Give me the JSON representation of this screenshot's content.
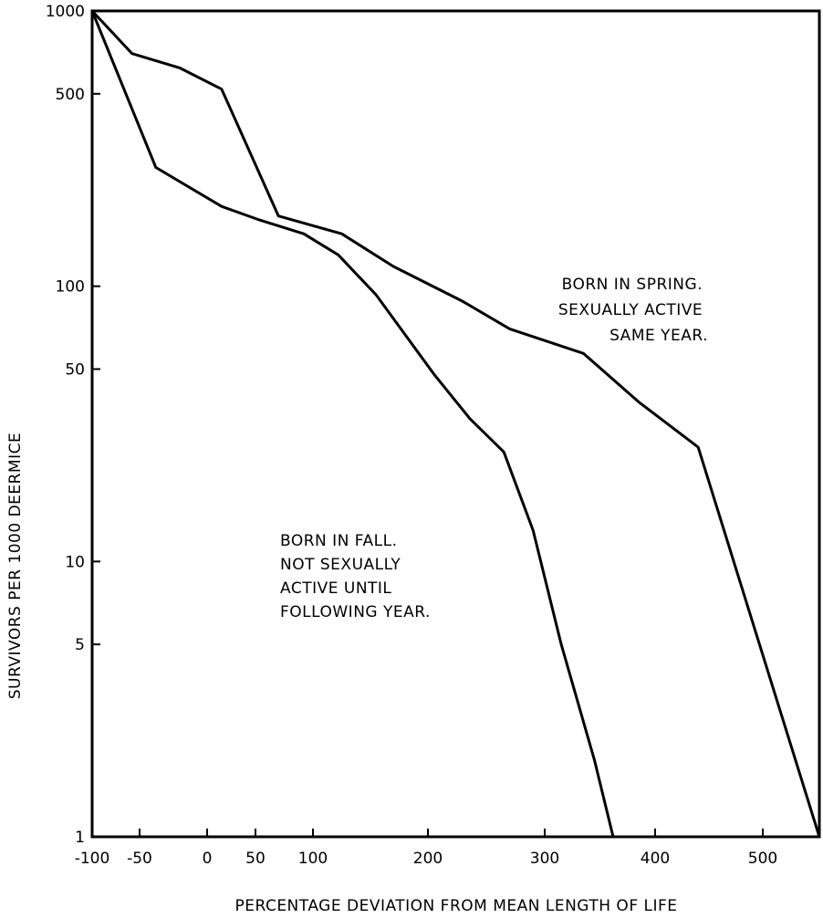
{
  "chart_data": {
    "type": "line",
    "title": "",
    "xlabel": "PERCENTAGE DEVIATION FROM MEAN LENGTH OF LIFE",
    "ylabel": "SURVIVORS PER 1000 DEERMICE",
    "y_scale": "log",
    "xlim": [
      -100,
      555
    ],
    "ylim": [
      1,
      1000
    ],
    "x_ticks": [
      -100,
      -50,
      0,
      50,
      100,
      200,
      300,
      400,
      500
    ],
    "x_tick_labels": [
      "-100",
      "-50",
      "0",
      "50",
      "100",
      "200",
      "300",
      "400",
      "500"
    ],
    "y_ticks": [
      1,
      5,
      10,
      50,
      100,
      500,
      1000
    ],
    "y_tick_labels": [
      "1",
      "5",
      "10",
      "50",
      "100",
      "500",
      "1000"
    ],
    "grid": false,
    "series": [
      {
        "id": "spring",
        "x": [
          -100,
          -58,
          -20,
          15,
          70,
          125,
          170,
          230,
          270,
          335,
          385,
          440,
          555
        ],
        "y": [
          1000,
          700,
          620,
          520,
          180,
          155,
          118,
          88,
          70,
          57,
          38,
          26,
          1
        ]
      },
      {
        "id": "fall",
        "x": [
          -100,
          -38,
          15,
          52,
          92,
          122,
          155,
          205,
          236,
          265,
          290,
          315,
          345,
          362
        ],
        "y": [
          1000,
          270,
          195,
          175,
          155,
          130,
          93,
          48,
          33,
          25,
          13,
          5,
          1.9,
          1
        ]
      }
    ],
    "annotations": [
      {
        "series": "spring",
        "lines": [
          "BORN IN SPRING.",
          "SEXUALLY ACTIVE",
          "SAME YEAR."
        ],
        "align": "right"
      },
      {
        "series": "fall",
        "lines": [
          "BORN IN FALL.",
          "NOT SEXUALLY",
          "ACTIVE UNTIL",
          "FOLLOWING YEAR."
        ],
        "align": "left"
      }
    ]
  }
}
